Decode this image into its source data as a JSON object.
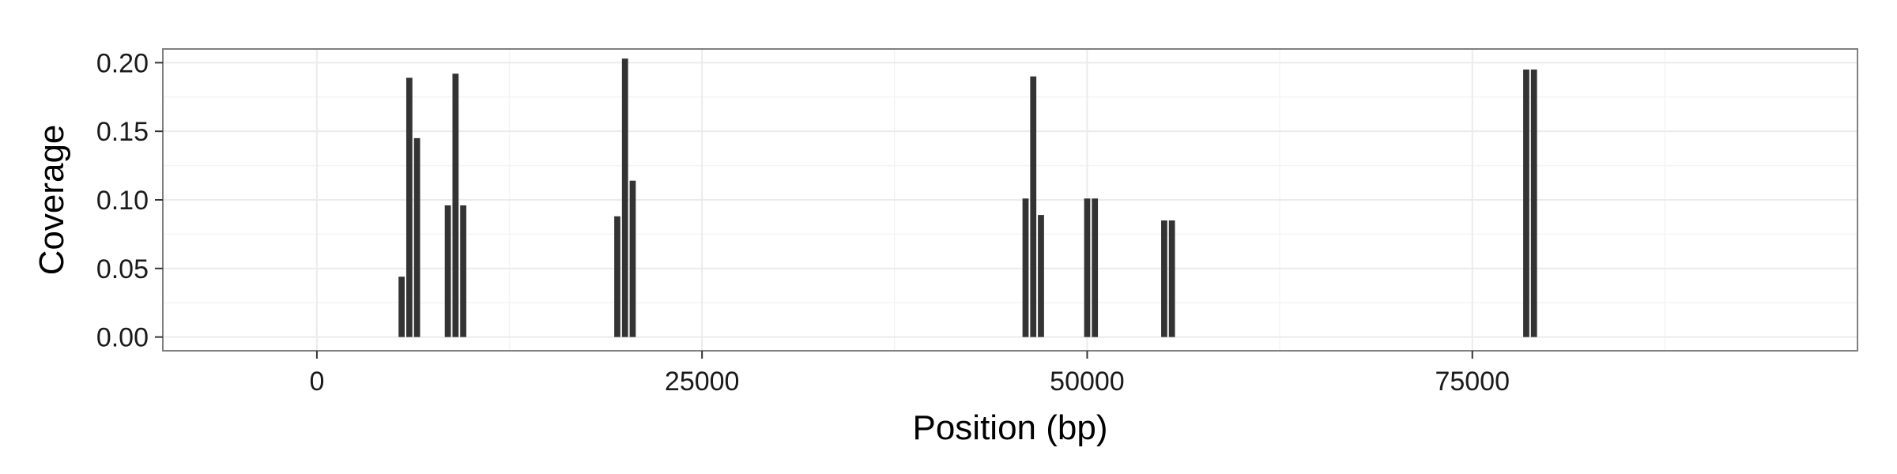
{
  "chart_data": {
    "type": "bar",
    "title": "",
    "xlabel": "Position (bp)",
    "ylabel": "Coverage",
    "xlim": [
      -10000,
      100000
    ],
    "ylim": [
      -0.01,
      0.21
    ],
    "x_ticks": [
      0,
      25000,
      50000,
      75000
    ],
    "x_tick_labels": [
      "0",
      "25000",
      "50000",
      "75000"
    ],
    "y_ticks": [
      0.0,
      0.05,
      0.1,
      0.15,
      0.2
    ],
    "y_tick_labels": [
      "0.00",
      "0.05",
      "0.10",
      "0.15",
      "0.20"
    ],
    "grid": true,
    "legend": "none",
    "bar_width_bp": 500,
    "bar_color": "#333333",
    "panel_background": "#ffffff",
    "grid_color": "#ebebeb",
    "x": [
      5500,
      6000,
      6500,
      8500,
      9000,
      9500,
      19500,
      20000,
      20500,
      46000,
      46500,
      47000,
      50000,
      50500,
      55000,
      55500,
      78500,
      79000
    ],
    "values": [
      0.044,
      0.189,
      0.145,
      0.096,
      0.192,
      0.096,
      0.088,
      0.203,
      0.114,
      0.101,
      0.19,
      0.089,
      0.101,
      0.101,
      0.085,
      0.085,
      0.195,
      0.195
    ]
  }
}
